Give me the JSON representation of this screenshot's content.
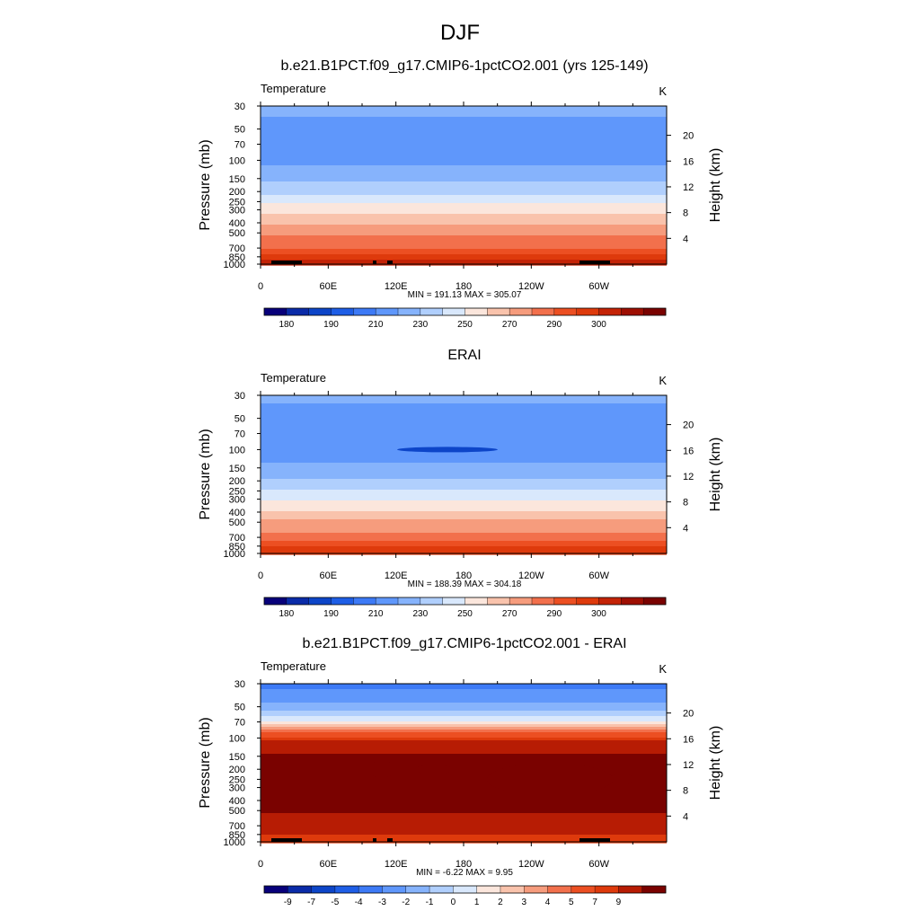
{
  "page_title": "DJF",
  "colors": {
    "temperature_palette": [
      "#08007a",
      "#0a2ba8",
      "#0d45c8",
      "#1e5ee6",
      "#3d7af6",
      "#5f97fb",
      "#86b3fc",
      "#b0cffd",
      "#d9e8fc",
      "#fbe6dc",
      "#f9c3ac",
      "#f69c7d",
      "#f2704c",
      "#ec4f22",
      "#de3a0c",
      "#c42306",
      "#9e0f02",
      "#7a0200"
    ],
    "difference_palette": [
      "#08007a",
      "#0a2ba8",
      "#0d45c8",
      "#1e5ee6",
      "#3d7af6",
      "#5f97fb",
      "#86b3fc",
      "#b0cffd",
      "#d9e8fc",
      "#fbe6dc",
      "#f9c3ac",
      "#f69c7d",
      "#f2704c",
      "#ec4f22",
      "#de3a0c",
      "#b71c04",
      "#7a0200"
    ],
    "land": "#000000"
  },
  "chart_data": [
    {
      "type": "heatmap",
      "title": "b.e21.B1PCT.f09_g17.CMIP6-1pctCO2.001 (yrs 125-149)",
      "left_string": "Temperature",
      "right_string": "K",
      "xlabel": "",
      "ylabel": "Pressure (mb)",
      "ylabel_right": "Height (km)",
      "x_ticks": [
        "0",
        "60E",
        "120E",
        "180",
        "120W",
        "60W"
      ],
      "x_tick_lon": [
        0,
        60,
        120,
        180,
        240,
        300
      ],
      "xlim": [
        0,
        360
      ],
      "y_ticks": [
        "30",
        "50",
        "70",
        "100",
        "150",
        "200",
        "250",
        "300",
        "400",
        "500",
        "700",
        "850",
        "1000"
      ],
      "y_tick_values": [
        30,
        50,
        70,
        100,
        150,
        200,
        250,
        300,
        400,
        500,
        700,
        850,
        1000
      ],
      "ylim": [
        1000,
        30
      ],
      "y_scale": "log",
      "right_ticks": [
        "20",
        "16",
        "12",
        "8",
        "4"
      ],
      "right_tick_values": [
        20,
        16,
        12,
        8,
        4
      ],
      "stats": "MIN = 191.13  MAX = 305.07",
      "colorbar_labels": [
        "180",
        "190",
        "210",
        "230",
        "250",
        "270",
        "290",
        "300"
      ],
      "colorbar_label_slots": [
        1,
        3,
        5,
        7,
        9,
        11,
        13,
        15
      ],
      "levels_p": [
        30,
        50,
        70,
        100,
        150,
        200,
        250,
        300,
        400,
        500,
        700,
        850,
        1000
      ],
      "level_values": [
        215,
        205,
        204,
        206,
        219,
        227,
        238,
        245,
        258,
        268,
        280,
        288,
        293
      ]
    },
    {
      "type": "heatmap",
      "title": "ERAI",
      "left_string": "Temperature",
      "right_string": "K",
      "xlabel": "",
      "ylabel": "Pressure (mb)",
      "ylabel_right": "Height (km)",
      "x_ticks": [
        "0",
        "60E",
        "120E",
        "180",
        "120W",
        "60W"
      ],
      "x_tick_lon": [
        0,
        60,
        120,
        180,
        240,
        300
      ],
      "xlim": [
        0,
        360
      ],
      "y_ticks": [
        "30",
        "50",
        "70",
        "100",
        "150",
        "200",
        "250",
        "300",
        "400",
        "500",
        "700",
        "850",
        "1000"
      ],
      "y_tick_values": [
        30,
        50,
        70,
        100,
        150,
        200,
        250,
        300,
        400,
        500,
        700,
        850,
        1000
      ],
      "ylim": [
        1000,
        30
      ],
      "y_scale": "log",
      "right_ticks": [
        "20",
        "16",
        "12",
        "8",
        "4"
      ],
      "right_tick_values": [
        20,
        16,
        12,
        8,
        4
      ],
      "stats": "MIN = 188.39  MAX = 304.18",
      "colorbar_labels": [
        "180",
        "190",
        "210",
        "230",
        "250",
        "270",
        "290",
        "300"
      ],
      "colorbar_label_slots": [
        1,
        3,
        5,
        7,
        9,
        11,
        13,
        15
      ],
      "levels_p": [
        30,
        50,
        70,
        100,
        150,
        200,
        250,
        300,
        400,
        500,
        700,
        850,
        1000
      ],
      "level_values": [
        212,
        207,
        205,
        203,
        213,
        221,
        231,
        239,
        252,
        262,
        275,
        285,
        290
      ]
    },
    {
      "type": "heatmap",
      "title": "b.e21.B1PCT.f09_g17.CMIP6-1pctCO2.001 - ERAI",
      "left_string": "Temperature",
      "right_string": "K",
      "xlabel": "",
      "ylabel": "Pressure (mb)",
      "ylabel_right": "Height (km)",
      "x_ticks": [
        "0",
        "60E",
        "120E",
        "180",
        "120W",
        "60W"
      ],
      "x_tick_lon": [
        0,
        60,
        120,
        180,
        240,
        300
      ],
      "xlim": [
        0,
        360
      ],
      "y_ticks": [
        "30",
        "50",
        "70",
        "100",
        "150",
        "200",
        "250",
        "300",
        "400",
        "500",
        "700",
        "850",
        "1000"
      ],
      "y_tick_values": [
        30,
        50,
        70,
        100,
        150,
        200,
        250,
        300,
        400,
        500,
        700,
        850,
        1000
      ],
      "ylim": [
        1000,
        30
      ],
      "y_scale": "log",
      "right_ticks": [
        "20",
        "16",
        "12",
        "8",
        "4"
      ],
      "right_tick_values": [
        20,
        16,
        12,
        8,
        4
      ],
      "stats": "MIN =  -6.22  MAX =   9.95",
      "colorbar_labels": [
        "-9",
        "-7",
        "-5",
        "-4",
        "-3",
        "-2",
        "-1",
        "0",
        "1",
        "2",
        "3",
        "4",
        "5",
        "7",
        "9"
      ],
      "colorbar_label_slots": [
        1,
        2,
        3,
        4,
        5,
        6,
        7,
        8,
        9,
        10,
        11,
        12,
        13,
        14,
        15
      ],
      "levels_p": [
        30,
        40,
        50,
        60,
        70,
        80,
        100,
        150,
        200,
        300,
        500,
        700,
        1000
      ],
      "level_values": [
        -5.5,
        -4.5,
        -3.5,
        -2.5,
        -1,
        1.5,
        4.5,
        7.5,
        8,
        8.3,
        7.5,
        5.5,
        4.5
      ]
    }
  ]
}
